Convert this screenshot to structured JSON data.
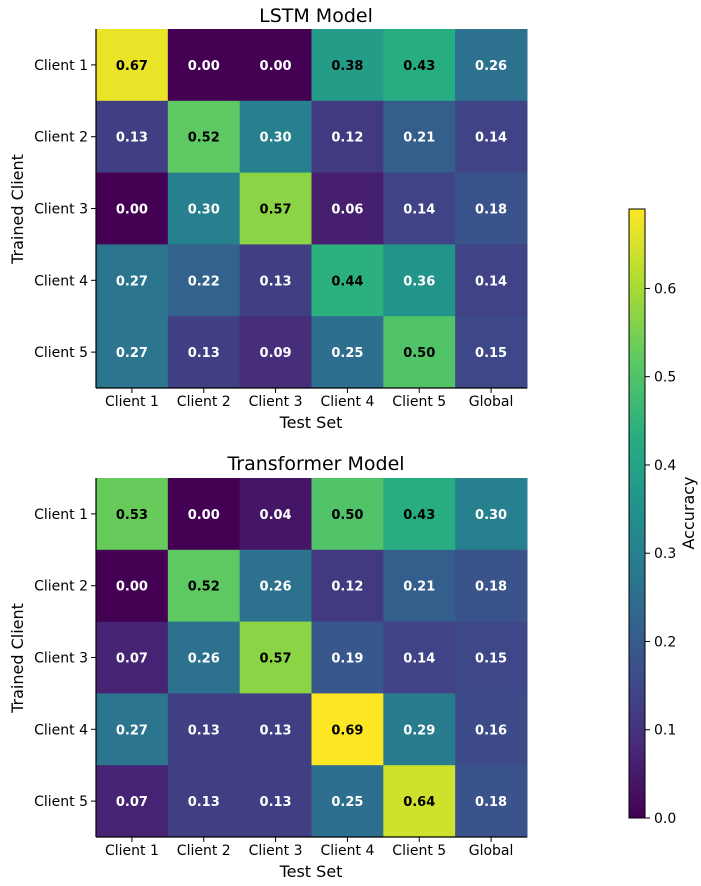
{
  "chart_data": [
    {
      "type": "heatmap",
      "title": "LSTM Model",
      "xlabel": "Test Set",
      "ylabel": "Trained Client",
      "x_categories": [
        "Client 1",
        "Client 2",
        "Client 3",
        "Client 4",
        "Client 5",
        "Global"
      ],
      "y_categories": [
        "Client 1",
        "Client 2",
        "Client 3",
        "Client 4",
        "Client 5"
      ],
      "values": [
        [
          0.67,
          0.0,
          0.0,
          0.38,
          0.43,
          0.26
        ],
        [
          0.13,
          0.52,
          0.3,
          0.12,
          0.21,
          0.14
        ],
        [
          0.0,
          0.3,
          0.57,
          0.06,
          0.14,
          0.18
        ],
        [
          0.27,
          0.22,
          0.13,
          0.44,
          0.36,
          0.14
        ],
        [
          0.27,
          0.13,
          0.09,
          0.25,
          0.5,
          0.15
        ]
      ],
      "value_labels": [
        [
          "0.67",
          "0.00",
          "0.00",
          "0.38",
          "0.43",
          "0.26"
        ],
        [
          "0.13",
          "0.52",
          "0.30",
          "0.12",
          "0.21",
          "0.14"
        ],
        [
          "0.00",
          "0.30",
          "0.57",
          "0.06",
          "0.14",
          "0.18"
        ],
        [
          "0.27",
          "0.22",
          "0.13",
          "0.44",
          "0.36",
          "0.14"
        ],
        [
          "0.27",
          "0.13",
          "0.09",
          "0.25",
          "0.50",
          "0.15"
        ]
      ]
    },
    {
      "type": "heatmap",
      "title": "Transformer Model",
      "xlabel": "Test Set",
      "ylabel": "Trained Client",
      "x_categories": [
        "Client 1",
        "Client 2",
        "Client 3",
        "Client 4",
        "Client 5",
        "Global"
      ],
      "y_categories": [
        "Client 1",
        "Client 2",
        "Client 3",
        "Client 4",
        "Client 5"
      ],
      "values": [
        [
          0.53,
          0.0,
          0.04,
          0.5,
          0.43,
          0.3
        ],
        [
          0.0,
          0.52,
          0.26,
          0.12,
          0.21,
          0.18
        ],
        [
          0.07,
          0.26,
          0.57,
          0.19,
          0.14,
          0.15
        ],
        [
          0.27,
          0.13,
          0.13,
          0.69,
          0.29,
          0.16
        ],
        [
          0.07,
          0.13,
          0.13,
          0.25,
          0.64,
          0.18
        ]
      ],
      "value_labels": [
        [
          "0.53",
          "0.00",
          "0.04",
          "0.50",
          "0.43",
          "0.30"
        ],
        [
          "0.00",
          "0.52",
          "0.26",
          "0.12",
          "0.21",
          "0.18"
        ],
        [
          "0.07",
          "0.26",
          "0.57",
          "0.19",
          "0.14",
          "0.15"
        ],
        [
          "0.27",
          "0.13",
          "0.13",
          "0.69",
          "0.29",
          "0.16"
        ],
        [
          "0.07",
          "0.13",
          "0.13",
          "0.25",
          "0.64",
          "0.18"
        ]
      ]
    }
  ],
  "colorbar": {
    "label": "Accuracy",
    "range": [
      0.0,
      0.69
    ],
    "ticks": [
      0.0,
      0.1,
      0.2,
      0.3,
      0.4,
      0.5,
      0.6
    ],
    "tick_labels": [
      "0.0",
      "0.1",
      "0.2",
      "0.3",
      "0.4",
      "0.5",
      "0.6"
    ],
    "colormap": "viridis"
  },
  "colors": {
    "cell_text_dark": "#000000",
    "cell_text_light": "#ffffff",
    "axis": "#000000"
  }
}
